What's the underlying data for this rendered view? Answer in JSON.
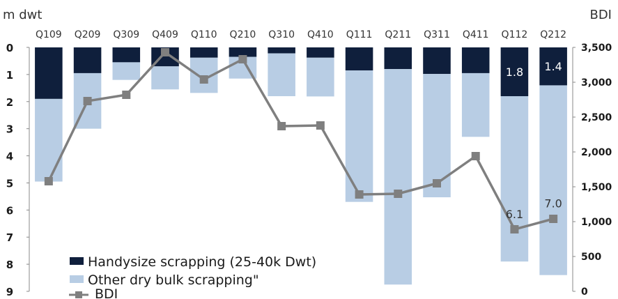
{
  "chart_data": {
    "type": "bar",
    "stacked": true,
    "left_axis_label": "m dwt",
    "right_axis_label": "BDI",
    "categories": [
      "Q109",
      "Q209",
      "Q309",
      "Q409",
      "Q110",
      "Q210",
      "Q310",
      "Q410",
      "Q111",
      "Q211",
      "Q311",
      "Q411",
      "Q112",
      "Q212"
    ],
    "series": [
      {
        "name": "Handysize scrapping (25-40k Dwt)",
        "axis": "left",
        "color": "#0f1f3c",
        "values": [
          1.9,
          0.95,
          0.55,
          0.7,
          0.38,
          0.35,
          0.22,
          0.38,
          0.85,
          0.8,
          0.98,
          0.95,
          1.8,
          1.4
        ]
      },
      {
        "name": "Other dry bulk scrapping\"",
        "axis": "left",
        "color": "#b8cde4",
        "values": [
          3.05,
          2.05,
          0.65,
          0.85,
          1.3,
          0.8,
          1.58,
          1.43,
          4.85,
          7.95,
          4.55,
          2.35,
          6.1,
          7.0
        ]
      },
      {
        "name": "BDI",
        "axis": "right",
        "type": "line",
        "color": "#7f7f7f",
        "values": [
          1580,
          2730,
          2820,
          3430,
          3040,
          3330,
          2370,
          2380,
          1390,
          1400,
          1550,
          1940,
          890,
          1040
        ]
      }
    ],
    "left_axis": {
      "min": 0,
      "max": 9,
      "inverted": true,
      "ticks": [
        "0",
        "1",
        "2",
        "3",
        "4",
        "5",
        "6",
        "7",
        "8",
        "9"
      ]
    },
    "right_axis": {
      "min": 0,
      "max": 3500,
      "ticks": [
        "0",
        "500",
        "1,000",
        "1,500",
        "2,000",
        "2,500",
        "3,000",
        "3,500"
      ]
    },
    "data_labels": [
      {
        "category": "Q112",
        "series": 0,
        "text": "1.8"
      },
      {
        "category": "Q212",
        "series": 0,
        "text": "1.4"
      },
      {
        "category": "Q112",
        "series": 1,
        "text": "6.1"
      },
      {
        "category": "Q212",
        "series": 1,
        "text": "7.0"
      }
    ],
    "legend_position": "bottom-left",
    "grid": false
  }
}
